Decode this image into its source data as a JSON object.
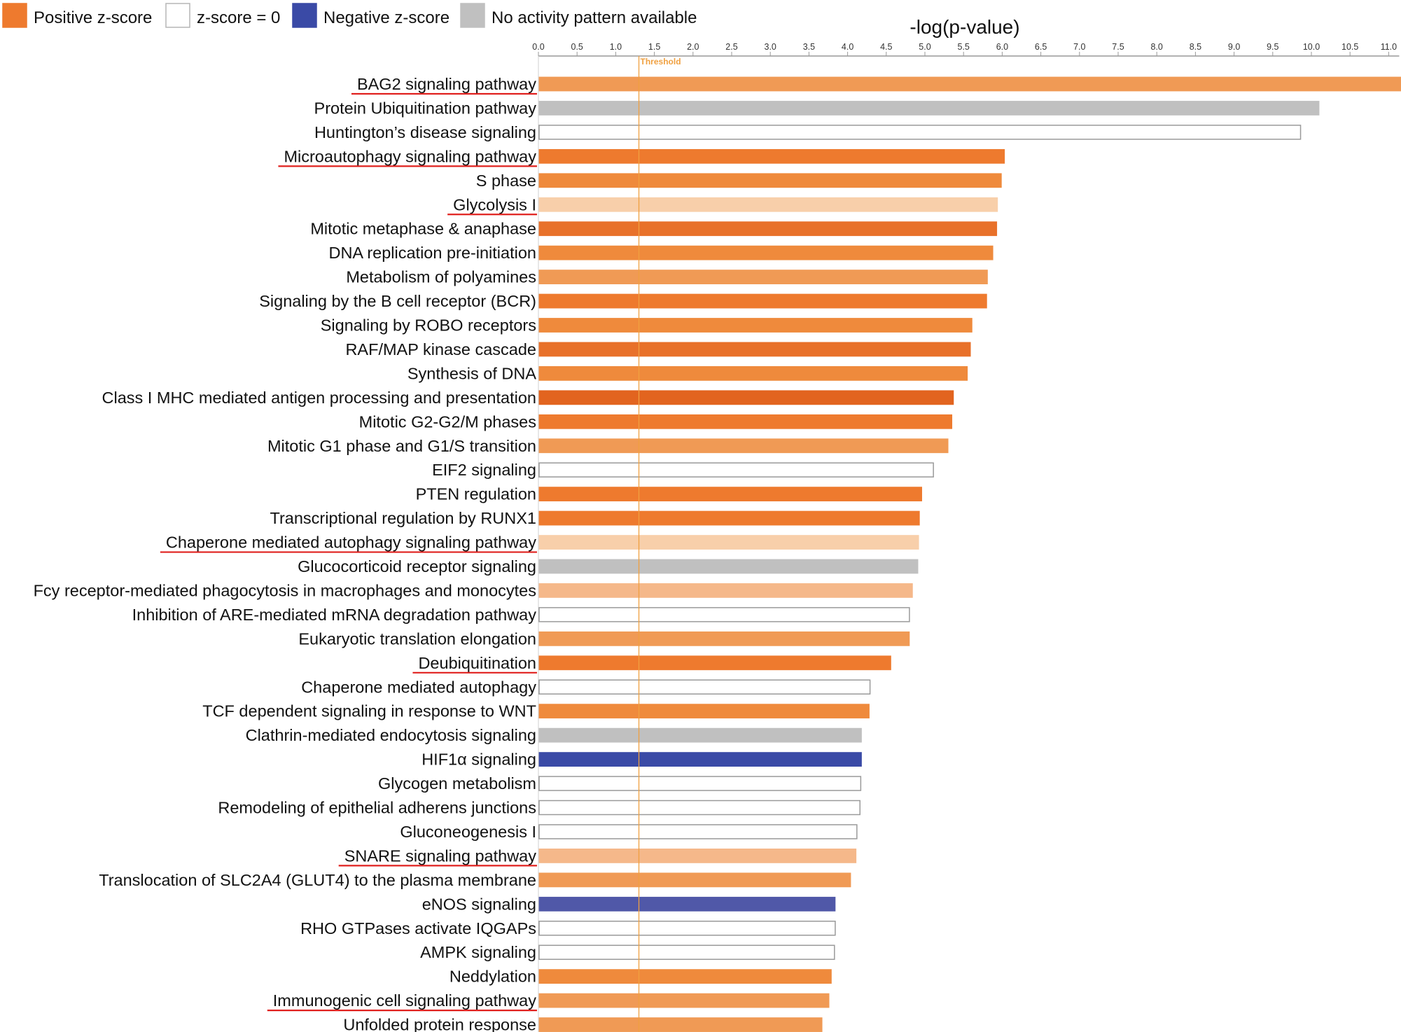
{
  "legend": {
    "items": [
      {
        "label": "Positive z-score",
        "color": "#ee7a2e",
        "border": "#ee7a2e"
      },
      {
        "label": "z-score = 0",
        "color": "#ffffff",
        "border": "#b5b5b5"
      },
      {
        "label": "Negative z-score",
        "color": "#3a4aa6",
        "border": "#3a4aa6"
      },
      {
        "label": "No activity pattern available",
        "color": "#c0c0c0",
        "border": "#c0c0c0"
      }
    ]
  },
  "colors": {
    "threshold": "#f0a040",
    "highlight_underline": "#e0201e",
    "axis": "#999999",
    "bar_border_default": "#9a9a9a"
  },
  "chart_data": {
    "type": "bar",
    "orientation": "horizontal",
    "title": "",
    "xlabel": "-log(p-value)",
    "ylabel": "",
    "xlim": [
      0.0,
      11.1
    ],
    "xticks": [
      "0.0",
      "0.5",
      "1.0",
      "1.5",
      "2.0",
      "2.5",
      "3.0",
      "3.5",
      "4.0",
      "4.5",
      "5.0",
      "5.5",
      "6.0",
      "6.5",
      "7.0",
      "7.5",
      "8.0",
      "8.5",
      "9.0",
      "9.5",
      "10.0",
      "10.5",
      "11.0"
    ],
    "threshold": {
      "value": 1.3,
      "label": "Threshold"
    },
    "bars": [
      {
        "label": "BAG2 signaling pathway",
        "value": 11.17,
        "color": "#f09a55",
        "highlight": true
      },
      {
        "label": "Protein Ubiquitination pathway",
        "value": 10.1,
        "color": "#c0c0c0",
        "highlight": false
      },
      {
        "label": "Huntington’s disease signaling",
        "value": 9.86,
        "color": "#ffffff",
        "highlight": false
      },
      {
        "label": "Microautophagy signaling pathway",
        "value": 6.03,
        "color": "#ee7a2e",
        "highlight": true
      },
      {
        "label": "S phase",
        "value": 5.99,
        "color": "#ef8a3c",
        "highlight": false
      },
      {
        "label": "Glycolysis I",
        "value": 5.94,
        "color": "#f8cfaa",
        "highlight": true
      },
      {
        "label": "Mitotic metaphase & anaphase",
        "value": 5.93,
        "color": "#e8712a",
        "highlight": false
      },
      {
        "label": "DNA replication pre-initiation",
        "value": 5.88,
        "color": "#ef8a3c",
        "highlight": false
      },
      {
        "label": "Metabolism of polyamines",
        "value": 5.81,
        "color": "#f09a55",
        "highlight": false
      },
      {
        "label": "Signaling by the B cell receptor (BCR)",
        "value": 5.8,
        "color": "#ee7a2e",
        "highlight": false
      },
      {
        "label": "Signaling by ROBO receptors",
        "value": 5.61,
        "color": "#ef8a3c",
        "highlight": false
      },
      {
        "label": "RAF/MAP kinase cascade",
        "value": 5.59,
        "color": "#e8712a",
        "highlight": false
      },
      {
        "label": "Synthesis of DNA",
        "value": 5.55,
        "color": "#ef8a3c",
        "highlight": false
      },
      {
        "label": "Class I MHC mediated antigen processing and presentation",
        "value": 5.37,
        "color": "#e2641f",
        "highlight": false
      },
      {
        "label": "Mitotic G2-G2/M phases",
        "value": 5.35,
        "color": "#ee7a2e",
        "highlight": false
      },
      {
        "label": "Mitotic G1 phase and G1/S transition",
        "value": 5.3,
        "color": "#f09a55",
        "highlight": false
      },
      {
        "label": "EIF2 signaling",
        "value": 5.11,
        "color": "#ffffff",
        "highlight": false
      },
      {
        "label": "PTEN regulation",
        "value": 4.96,
        "color": "#ee7a2e",
        "highlight": false
      },
      {
        "label": "Transcriptional regulation by RUNX1",
        "value": 4.93,
        "color": "#ee7a2e",
        "highlight": false
      },
      {
        "label": "Chaperone mediated autophagy signaling pathway",
        "value": 4.92,
        "color": "#f8cfaa",
        "highlight": true
      },
      {
        "label": "Glucocorticoid receptor signaling",
        "value": 4.91,
        "color": "#c0c0c0",
        "highlight": false
      },
      {
        "label": "Fcy receptor-mediated phagocytosis in macrophages and monocytes",
        "value": 4.84,
        "color": "#f5b88a",
        "highlight": false
      },
      {
        "label": "Inhibition of ARE-mediated mRNA degradation pathway",
        "value": 4.8,
        "color": "#ffffff",
        "highlight": false
      },
      {
        "label": "Eukaryotic translation elongation",
        "value": 4.8,
        "color": "#f09a55",
        "highlight": false
      },
      {
        "label": "Deubiquitination",
        "value": 4.56,
        "color": "#ee7a2e",
        "highlight": true
      },
      {
        "label": "Chaperone mediated autophagy",
        "value": 4.29,
        "color": "#ffffff",
        "highlight": false
      },
      {
        "label": "TCF dependent signaling in response to WNT",
        "value": 4.28,
        "color": "#ef8a3c",
        "highlight": false
      },
      {
        "label": "Clathrin-mediated endocytosis signaling",
        "value": 4.18,
        "color": "#c0c0c0",
        "highlight": false
      },
      {
        "label": "HIF1α  signaling",
        "value": 4.18,
        "color": "#3a4aa6",
        "highlight": false
      },
      {
        "label": "Glycogen metabolism",
        "value": 4.17,
        "color": "#ffffff",
        "highlight": false
      },
      {
        "label": "Remodeling of epithelial adherens junctions",
        "value": 4.16,
        "color": "#ffffff",
        "highlight": false
      },
      {
        "label": "Gluconeogenesis I",
        "value": 4.12,
        "color": "#ffffff",
        "highlight": false
      },
      {
        "label": "SNARE signaling pathway",
        "value": 4.11,
        "color": "#f5b88a",
        "highlight": true
      },
      {
        "label": "Translocation of SLC2A4 (GLUT4) to the plasma membrane",
        "value": 4.04,
        "color": "#f09a55",
        "highlight": false
      },
      {
        "label": "eNOS signaling",
        "value": 3.84,
        "color": "#5058a8",
        "highlight": false
      },
      {
        "label": "RHO GTPases activate IQGAPs",
        "value": 3.84,
        "color": "#ffffff",
        "highlight": false
      },
      {
        "label": "AMPK signaling",
        "value": 3.83,
        "color": "#ffffff",
        "highlight": false
      },
      {
        "label": "Neddylation",
        "value": 3.79,
        "color": "#ef8a3c",
        "highlight": false
      },
      {
        "label": "Immunogenic cell signaling pathway",
        "value": 3.76,
        "color": "#f09a55",
        "highlight": true
      },
      {
        "label": "Unfolded protein response",
        "value": 3.67,
        "color": "#f09a55",
        "highlight": true
      }
    ]
  }
}
